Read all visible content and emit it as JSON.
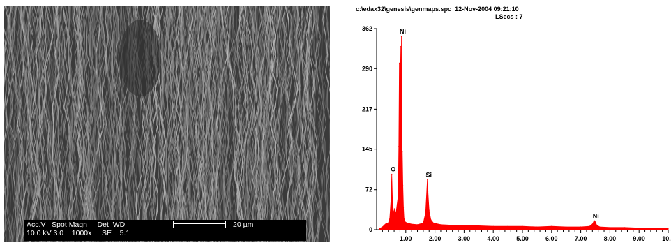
{
  "sem_panel": {
    "info_row1": "Acc.V   Spot Magn     Det  WD",
    "info_row2": "10.0 kV 3.0    1000x     SE    5.1",
    "scale_label": "20 µm"
  },
  "eds_panel": {
    "file_line": "c:\\edax32\\genesis\\genmaps.spc  12-Nov-2004 09:21:10",
    "lsecs_line": "LSecs : 7",
    "spectrum_color": "#ff0000"
  },
  "chart_data": {
    "type": "area",
    "title": "",
    "xlabel": "",
    "ylabel": "",
    "xlim": [
      0,
      10
    ],
    "ylim": [
      0,
      362
    ],
    "y_ticks": [
      "362",
      "290",
      "217",
      "145",
      "72",
      "0"
    ],
    "y_tick_values": [
      362,
      290,
      217,
      145,
      72,
      0
    ],
    "x_ticks": [
      "1.00",
      "2.00",
      "3.00",
      "4.00",
      "5.00",
      "6.00",
      "7.00",
      "8.00",
      "9.00",
      "10.0"
    ],
    "x_tick_values": [
      1,
      2,
      3,
      4,
      5,
      6,
      7,
      8,
      9,
      10
    ],
    "peaks": [
      {
        "label": "O",
        "x": 0.52,
        "y": 100
      },
      {
        "label": "Ni",
        "x": 0.85,
        "y": 348
      },
      {
        "label": "Si",
        "x": 1.74,
        "y": 90
      },
      {
        "label": "Ni",
        "x": 7.47,
        "y": 16
      }
    ],
    "series": [
      {
        "x": [
          0.1,
          0.2,
          0.3,
          0.4,
          0.45,
          0.5,
          0.52,
          0.54,
          0.58,
          0.62,
          0.66,
          0.7,
          0.74,
          0.76,
          0.78,
          0.8,
          0.82,
          0.84,
          0.85,
          0.86,
          0.88,
          0.9,
          0.92,
          0.94,
          0.98,
          1.05,
          1.2,
          1.4,
          1.6,
          1.68,
          1.72,
          1.74,
          1.76,
          1.8,
          1.86,
          1.95,
          2.2,
          2.6,
          3.0,
          3.5,
          4.0,
          4.5,
          5.0,
          5.5,
          6.0,
          6.5,
          7.0,
          7.3,
          7.4,
          7.45,
          7.47,
          7.5,
          7.55,
          7.65,
          8.0,
          8.5,
          9.0,
          9.5,
          10.0
        ],
        "y": [
          2,
          5,
          10,
          12,
          20,
          60,
          100,
          58,
          30,
          38,
          28,
          45,
          60,
          150,
          300,
          190,
          330,
          250,
          348,
          120,
          140,
          80,
          40,
          20,
          14,
          12,
          10,
          9,
          12,
          30,
          70,
          90,
          68,
          35,
          18,
          12,
          9,
          8,
          7,
          7,
          6,
          6,
          6,
          5,
          6,
          5,
          5,
          6,
          10,
          15,
          16,
          14,
          8,
          5,
          4,
          4,
          3,
          3,
          2
        ]
      }
    ]
  }
}
